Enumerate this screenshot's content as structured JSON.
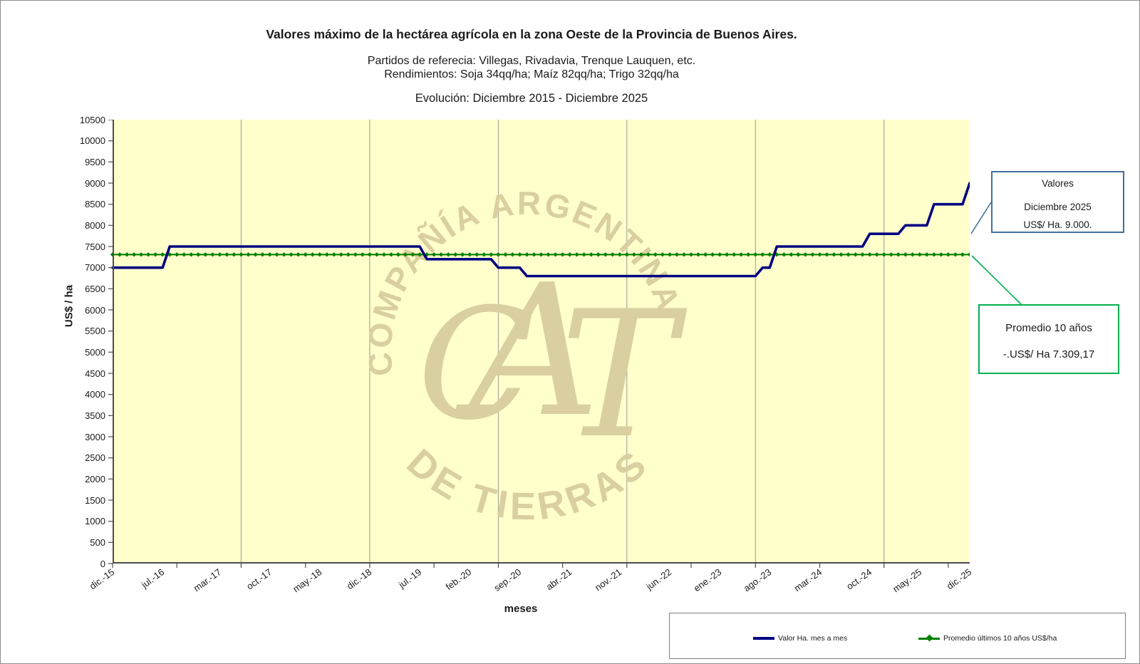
{
  "header": {
    "title": "Valores máximo de la hectárea agrícola en la zona Oeste de la Provincia de Buenos Aires.",
    "subtitle1": "Partidos de referecia: Villegas, Rivadavia, Trenque Lauquen, etc.",
    "subtitle2": "Rendimientos: Soja 34qq/ha; Maíz 82qq/ha; Trigo 32qq/ha",
    "evolution": "Evolución:  Diciembre 2015 - Diciembre 2025"
  },
  "axes": {
    "y_title": "US$ / ha",
    "x_title": "meses",
    "y_min": 0,
    "y_max": 10500,
    "y_step": 500
  },
  "chart_data": {
    "type": "line",
    "title": "Valores máximo de la hectárea agrícola en la zona Oeste de la Provincia de Buenos Aires.",
    "xlabel": "meses",
    "ylabel": "US$ / ha",
    "ylim": [
      0,
      10500
    ],
    "x_months_total": 121,
    "x_range": [
      "dic.-15",
      "dic.-25"
    ],
    "x_tick_labels": [
      "dic.-15",
      "jul.-16",
      "mar.-17",
      "oct.-17",
      "may.-18",
      "dic.-18",
      "jul.-19",
      "feb.-20",
      "sep.-20",
      "abr.-21",
      "nov.-21",
      "jun.-22",
      "ene.-23",
      "ago.-23",
      "mar.-24",
      "oct.-24",
      "may.-25",
      "dic.-25"
    ],
    "x_tick_month_index": [
      0,
      7,
      15,
      22,
      29,
      36,
      43,
      50,
      57,
      64,
      71,
      78,
      85,
      92,
      99,
      106,
      113,
      120
    ],
    "x_minor_tick_every_months": 9,
    "gridline_month_index": [
      18,
      36,
      54,
      72,
      90,
      108
    ],
    "grid": "vertical-only",
    "legend_position": "bottom-right-box",
    "series": [
      {
        "name": "Valor Ha. mes a mes",
        "color": "#000082",
        "values_rle": [
          [
            8,
            7000
          ],
          [
            36,
            7500
          ],
          [
            10,
            7200
          ],
          [
            4,
            7000
          ],
          [
            33,
            6800
          ],
          [
            2,
            7000
          ],
          [
            13,
            7500
          ],
          [
            5,
            7800
          ],
          [
            4,
            8000
          ],
          [
            5,
            8500
          ],
          [
            1,
            9000
          ]
        ],
        "segments": [
          {
            "from": "dic.-15",
            "to": "jul.-16",
            "value": 7000
          },
          {
            "from": "ago.-16",
            "to": "jul.-19",
            "value": 7500
          },
          {
            "from": "ago.-19",
            "to": "may.-20",
            "value": 7200
          },
          {
            "from": "jun.-20",
            "to": "sep.-20",
            "value": 7000
          },
          {
            "from": "oct.-20",
            "to": "jun.-23",
            "value": 6800
          },
          {
            "from": "jul.-23",
            "to": "ago.-23",
            "value": 7000
          },
          {
            "from": "sep.-23",
            "to": "sep.-24",
            "value": 7500
          },
          {
            "from": "oct.-24",
            "to": "feb.-25",
            "value": 7800
          },
          {
            "from": "mar.-25",
            "to": "jun.-25",
            "value": 8000
          },
          {
            "from": "jul.-25",
            "to": "nov.-25",
            "value": 8500
          },
          {
            "from": "dic.-25",
            "to": "dic.-25",
            "value": 9000
          }
        ]
      },
      {
        "name": "Promedio últimos 10 años US$/ha",
        "color": "#008000",
        "constant_value": 7309.17,
        "marker": "diamond-every-month"
      }
    ]
  },
  "annotations": {
    "valores_box": {
      "line1": "Valores",
      "line2": "Diciembre 2025",
      "line3": "US$/ Ha. 9.000.",
      "border_color": "#41719C"
    },
    "promedio_box": {
      "line1": "Promedio 10 años",
      "line2": "-.US$/ Ha 7.309,17",
      "border_color": "#00B050"
    }
  },
  "legend": {
    "item1": "Valor Ha. mes a mes",
    "item2": "Promedio últimos 10 años US$/ha"
  },
  "watermark": {
    "arc_top": "COMPAÑÍA ARGENTINA",
    "arc_bottom": "DE TIERRAS",
    "monogram": "CAT",
    "color": "#d9cfa0"
  },
  "colors": {
    "plot_background": "#ffffcc",
    "line_blue": "#000082",
    "line_green": "#008000",
    "gridline": "#9a9a9a",
    "axis": "#4d4d4d",
    "valores_border": "#41719C",
    "promedio_border": "#00B050"
  }
}
